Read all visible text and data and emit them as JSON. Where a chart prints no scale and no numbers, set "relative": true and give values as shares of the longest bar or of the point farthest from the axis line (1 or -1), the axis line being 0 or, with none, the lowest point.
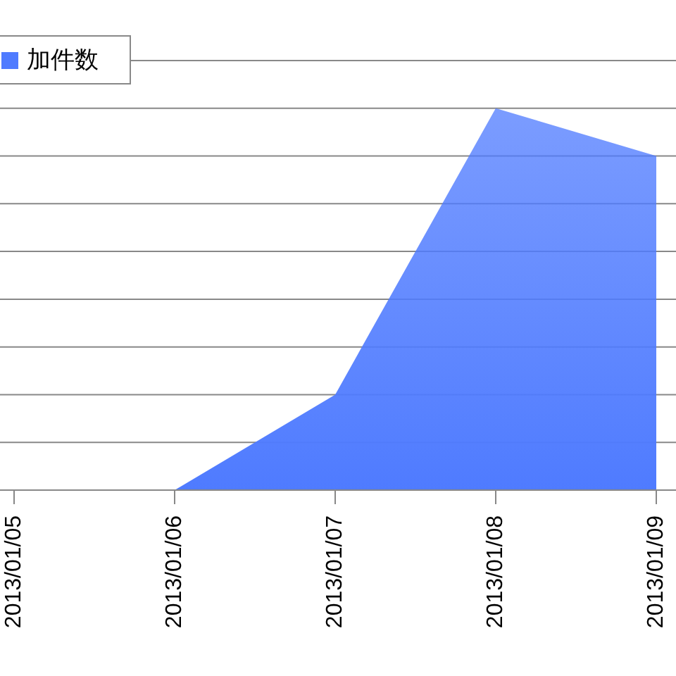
{
  "chart_data": {
    "type": "area",
    "relative": true,
    "categories": [
      "2013/01/05",
      "2013/01/06",
      "2013/01/07",
      "2013/01/08",
      "2013/01/09"
    ],
    "series": [
      {
        "name": "加件数",
        "color": "#4f7bff",
        "values": [
          null,
          0,
          0.25,
          1,
          0.875
        ]
      }
    ],
    "grid": "y",
    "legend": "top left"
  }
}
